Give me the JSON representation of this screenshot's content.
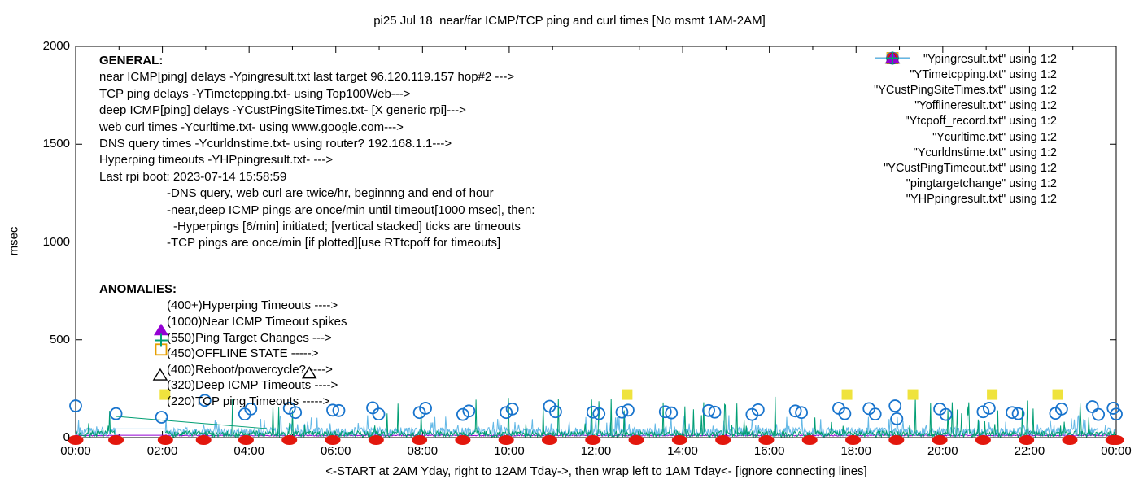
{
  "chart_data": {
    "type": "line",
    "title": "pi25 Jul 18  near/far ICMP/TCP ping and curl times [No msmt 1AM-2AM]",
    "ylabel": "msec",
    "xlabel": "<-START at 2AM Yday, right to 12AM Tday->, then wrap left to 1AM Tday<- [ignore connecting lines]",
    "ylim": [
      0,
      2000
    ],
    "xlim_hours": [
      0,
      24
    ],
    "y_ticks": [
      0,
      500,
      1000,
      1500,
      2000
    ],
    "x_ticks": [
      "00:00",
      "02:00",
      "04:00",
      "06:00",
      "08:00",
      "10:00",
      "12:00",
      "14:00",
      "16:00",
      "18:00",
      "20:00",
      "22:00",
      "00:00"
    ],
    "grid": false,
    "legend_position": "top-right-inside",
    "measurement_gap_hours": [
      0.933,
      2.067
    ],
    "noise_series": [
      {
        "key": "near_icmp",
        "legend": "\"Ypingresult.txt\" using 1:2",
        "color": "#9400D3",
        "seed": 11,
        "base_range_msec": [
          8,
          14
        ],
        "spike_prob": 0,
        "spike_range_msec": [
          0,
          0
        ]
      },
      {
        "key": "deep_icmp",
        "legend": "\"YCustPingSiteTimes.txt\" using 1:2",
        "color": "#63B8E6",
        "seed": 23,
        "base_range_msec": [
          8,
          52
        ],
        "spike_prob": 0.06,
        "spike_range_msec": [
          50,
          115
        ]
      },
      {
        "key": "tcp_ping",
        "legend": "\"YTimetcpping.txt\" using 1:2",
        "color": "#009E73",
        "seed": 7,
        "base_range_msec": [
          3,
          34
        ],
        "spike_prob": 0.05,
        "spike_range_msec": [
          60,
          210
        ]
      }
    ],
    "connecting_line_artifacts": [
      {
        "color": "#009E73",
        "from": [
          0.933,
          108
        ],
        "to": [
          4.4,
          46
        ]
      },
      {
        "color": "#63B8E6",
        "from": [
          0.933,
          44
        ],
        "to": [
          2.067,
          44
        ]
      },
      {
        "color": "#9400D3",
        "from": [
          0.933,
          12
        ],
        "to": [
          2.067,
          12
        ]
      }
    ],
    "marker_series": [
      {
        "key": "tcp_timeout_squares",
        "legend": "\"Ytcpoff_record.txt\" using 1:2",
        "marker": "filled-square",
        "color": "#EFE33D",
        "points": [
          [
            2.06,
            220
          ],
          [
            12.72,
            220
          ],
          [
            17.79,
            220
          ],
          [
            19.31,
            220
          ],
          [
            21.14,
            220
          ],
          [
            22.65,
            220
          ]
        ]
      },
      {
        "key": "curl_times",
        "legend": "\"Ycurltime.txt\" using 1:2",
        "marker": "open-circle",
        "color": "#1874CD",
        "points": [
          [
            0.0,
            162
          ],
          [
            0.93,
            122
          ],
          [
            1.98,
            104
          ],
          [
            2.98,
            190
          ],
          [
            3.9,
            120
          ],
          [
            4.04,
            146
          ],
          [
            4.93,
            150
          ],
          [
            5.07,
            128
          ],
          [
            5.93,
            140
          ],
          [
            6.07,
            138
          ],
          [
            6.85,
            152
          ],
          [
            6.99,
            120
          ],
          [
            7.93,
            128
          ],
          [
            8.07,
            150
          ],
          [
            8.93,
            118
          ],
          [
            9.07,
            136
          ],
          [
            9.93,
            128
          ],
          [
            10.07,
            146
          ],
          [
            10.93,
            160
          ],
          [
            11.07,
            132
          ],
          [
            11.93,
            130
          ],
          [
            12.07,
            122
          ],
          [
            12.6,
            130
          ],
          [
            12.74,
            140
          ],
          [
            13.6,
            132
          ],
          [
            13.74,
            126
          ],
          [
            14.6,
            138
          ],
          [
            14.74,
            130
          ],
          [
            15.6,
            118
          ],
          [
            15.74,
            142
          ],
          [
            16.6,
            136
          ],
          [
            16.74,
            128
          ],
          [
            17.6,
            150
          ],
          [
            17.74,
            122
          ],
          [
            18.3,
            148
          ],
          [
            18.44,
            120
          ],
          [
            18.9,
            162
          ],
          [
            18.94,
            96
          ],
          [
            19.93,
            146
          ],
          [
            20.07,
            118
          ],
          [
            20.93,
            132
          ],
          [
            21.07,
            150
          ],
          [
            21.6,
            128
          ],
          [
            21.74,
            122
          ],
          [
            22.6,
            124
          ],
          [
            22.74,
            146
          ],
          [
            23.45,
            158
          ],
          [
            23.59,
            118
          ],
          [
            23.93,
            150
          ],
          [
            24.0,
            120
          ]
        ]
      },
      {
        "key": "dns_times",
        "legend": "\"Ycurldnstime.txt\" using 1:2",
        "marker": "filled-dot",
        "color": "#E3170D",
        "points": [
          [
            0,
            0
          ],
          [
            0.93,
            0
          ],
          [
            2.07,
            0
          ],
          [
            2.95,
            0
          ],
          [
            3.93,
            0
          ],
          [
            4.93,
            0
          ],
          [
            5.93,
            0
          ],
          [
            6.93,
            0
          ],
          [
            7.93,
            0
          ],
          [
            8.93,
            0
          ],
          [
            9.93,
            0
          ],
          [
            10.93,
            0
          ],
          [
            11.93,
            0
          ],
          [
            12.93,
            0
          ],
          [
            13.93,
            0
          ],
          [
            14.93,
            0
          ],
          [
            15.93,
            0
          ],
          [
            16.93,
            0
          ],
          [
            17.93,
            0
          ],
          [
            18.93,
            0
          ],
          [
            19.93,
            0
          ],
          [
            20.93,
            0
          ],
          [
            21.93,
            0
          ],
          [
            22.93,
            0
          ],
          [
            23.93,
            0
          ],
          [
            24,
            0
          ]
        ]
      },
      {
        "key": "deep_icmp_timeouts",
        "legend": "\"YCustPingTimeout.txt\" using 1:2",
        "marker": "open-triangle",
        "color": "#000000",
        "points": [
          [
            1.95,
            320
          ],
          [
            5.39,
            330
          ]
        ]
      },
      {
        "key": "ping_target_changes",
        "legend": "\"pingtargetchange\" using 1:2",
        "marker": "filled-triangle",
        "color": "#9400D3",
        "points": [
          [
            1.97,
            550
          ]
        ]
      },
      {
        "key": "offline_state",
        "legend": "\"Yofflineresult.txt\" using 1:2",
        "marker": "open-square",
        "color": "#E69F00",
        "points": [
          [
            1.97,
            450
          ]
        ]
      },
      {
        "key": "hyperping_timeouts",
        "legend": "\"YHPpingresult.txt\" using 1:2",
        "marker": "plus",
        "color": "#009E73",
        "points": [
          [
            1.97,
            497
          ]
        ]
      }
    ]
  },
  "legend": [
    {
      "label": "\"Ypingresult.txt\" using 1:2",
      "swatch": "line",
      "color": "#9400D3"
    },
    {
      "label": "\"YTimetcpping.txt\" using 1:2",
      "swatch": "line",
      "color": "#009E73"
    },
    {
      "label": "\"YCustPingSiteTimes.txt\" using 1:2",
      "swatch": "line",
      "color": "#63B8E6"
    },
    {
      "label": "\"Yofflineresult.txt\" using 1:2",
      "swatch": "open-square",
      "color": "#E69F00"
    },
    {
      "label": "\"Ytcpoff_record.txt\" using 1:2",
      "swatch": "filled-square",
      "color": "#EFE33D"
    },
    {
      "label": "\"Ycurltime.txt\" using 1:2",
      "swatch": "open-circle",
      "color": "#1874CD"
    },
    {
      "label": "\"Ycurldnstime.txt\" using 1:2",
      "swatch": "filled-circle",
      "color": "#E3170D"
    },
    {
      "label": "\"YCustPingTimeout.txt\" using 1:2",
      "swatch": "open-triangle",
      "color": "#000000"
    },
    {
      "label": "\"pingtargetchange\" using 1:2",
      "swatch": "filled-triangle",
      "color": "#9400D3"
    },
    {
      "label": "\"YHPpingresult.txt\" using 1:2",
      "swatch": "plus",
      "color": "#009E73"
    }
  ],
  "general_block": {
    "heading": "GENERAL:",
    "lines": [
      {
        "text": "near ICMP[ping] delays -Ypingresult.txt last target 96.120.119.157 hop#2 --->",
        "indent": 0
      },
      {
        "text": "TCP ping delays -YTimetcpping.txt- using Top100Web--->",
        "indent": 0
      },
      {
        "text": "deep ICMP[ping] delays -YCustPingSiteTimes.txt- [X generic rpi]--->",
        "indent": 0
      },
      {
        "text": "web curl times -Ycurltime.txt- using www.google.com--->",
        "indent": 0
      },
      {
        "text": "DNS query times -Ycurldnstime.txt- using router? 192.168.1.1--->",
        "indent": 0
      },
      {
        "text": "Hyperping timeouts -YHPpingresult.txt- --->",
        "indent": 0
      },
      {
        "text": "Last rpi boot: 2023-07-14 15:58:59",
        "indent": 0
      },
      {
        "text": "-DNS query, web curl are twice/hr, beginnng and end of hour",
        "indent": 1
      },
      {
        "text": "-near,deep ICMP pings are once/min until timeout[1000 msec], then:",
        "indent": 1
      },
      {
        "text": "-Hyperpings [6/min] initiated; [vertical stacked] ticks are timeouts",
        "indent": 2
      },
      {
        "text": "-TCP pings are once/min [if plotted][use RTtcpoff for timeouts]",
        "indent": 1
      }
    ]
  },
  "anomalies_block": {
    "heading": "ANOMALIES:",
    "lines": [
      "(400+)Hyperping Timeouts ---->",
      "(1000)Near ICMP Timeout spikes",
      "(550)Ping Target Changes --->",
      "(450)OFFLINE STATE ----->",
      "(400)Reboot/powercycle? ---->",
      "(320)Deep ICMP Timeouts ---->",
      "(220)TCP ping Timeouts ----->"
    ]
  }
}
